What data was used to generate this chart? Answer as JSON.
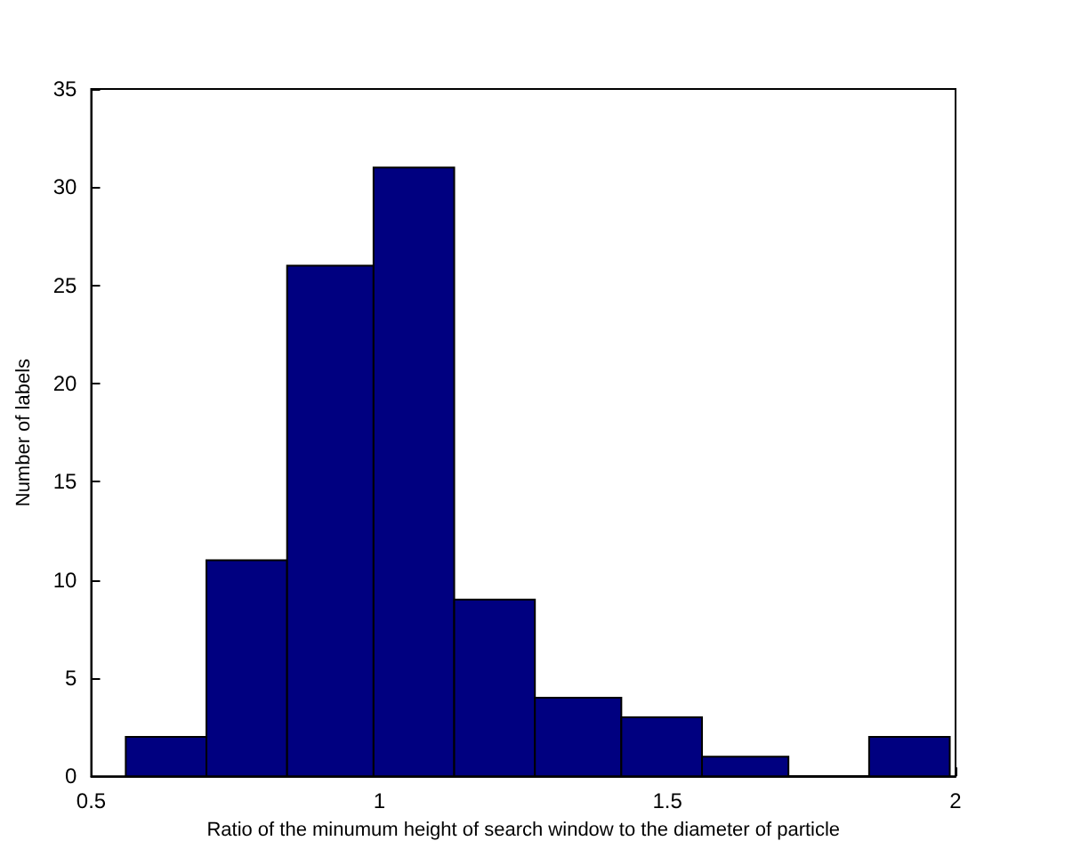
{
  "chart_data": {
    "type": "histogram",
    "xlabel": "Ratio of the minumum height of search window to the diameter of particle",
    "ylabel": "Number of labels",
    "bins": [
      0.56,
      0.7,
      0.84,
      0.99,
      1.13,
      1.27,
      1.42,
      1.56,
      1.71,
      1.85,
      1.99
    ],
    "values": [
      2,
      11,
      26,
      31,
      9,
      4,
      3,
      1,
      0,
      2
    ],
    "color": "#000080",
    "xlim": [
      0.5,
      2
    ],
    "xticks": [
      0.5,
      1,
      1.5,
      2
    ],
    "ylim": [
      0,
      35
    ],
    "yticks": [
      0,
      5,
      10,
      15,
      20,
      25,
      30,
      35
    ],
    "grid": false
  }
}
